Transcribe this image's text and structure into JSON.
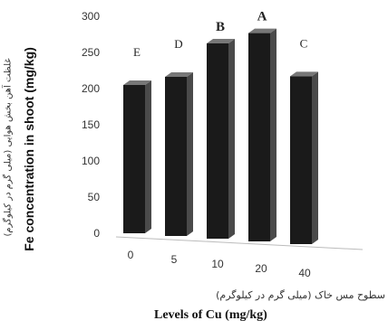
{
  "chart_data": {
    "type": "bar",
    "categories": [
      "0",
      "5",
      "10",
      "20",
      "40"
    ],
    "values": [
      205,
      220,
      270,
      288,
      232
    ],
    "letters": [
      "E",
      "D",
      "B",
      "A",
      "C"
    ],
    "ylabel_en": "Fe concentration in shoot (mg/kg)",
    "ylabel_fa": "غلظت آهن بخش هوایی (میلی گرم در کیلوگرم)",
    "xlabel_en": "Levels of Cu (mg/kg)",
    "xlabel_fa": "سطوح مس خاک (میلی گرم در کیلوگرم)",
    "yticks": [
      "0",
      "50",
      "100",
      "150",
      "200",
      "250",
      "300"
    ],
    "ylim": [
      0,
      300
    ],
    "grid": false,
    "colors": {
      "bar_front": "#1a1a1a",
      "bar_side": "#4a4a4a",
      "bar_top": "#777777"
    }
  }
}
